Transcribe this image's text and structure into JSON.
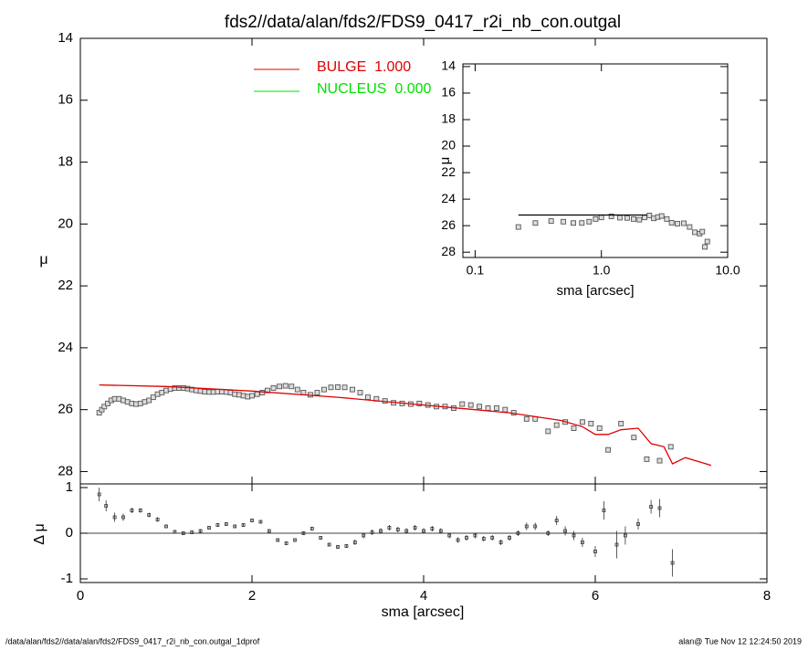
{
  "footer": {
    "left": "/data/alan/fds2//data/alan/fds2/FDS9_0417_r2i_nb_con.outgal_1dprof",
    "right": "alan@  Tue Nov 12 12:24:50 2019"
  },
  "chart_data": [
    {
      "type": "line",
      "title": "fds2//data/alan/fds2/FDS9_0417_r2i_nb_con.outgal",
      "y_label": "μ",
      "xlim": [
        0,
        8
      ],
      "ylim": [
        28.4,
        14
      ],
      "yticks": [
        14,
        16,
        18,
        20,
        22,
        24,
        26,
        28
      ],
      "series": [
        {
          "marker": "square",
          "color": "#555555",
          "x": [
            0.22,
            0.25,
            0.28,
            0.32,
            0.36,
            0.4,
            0.45,
            0.5,
            0.55,
            0.6,
            0.65,
            0.7,
            0.75,
            0.8,
            0.85,
            0.9,
            0.95,
            1.0,
            1.05,
            1.1,
            1.15,
            1.2,
            1.25,
            1.3,
            1.35,
            1.4,
            1.45,
            1.5,
            1.55,
            1.6,
            1.65,
            1.7,
            1.75,
            1.8,
            1.85,
            1.9,
            1.95,
            2.0,
            2.06,
            2.12,
            2.18,
            2.25,
            2.32,
            2.39,
            2.46,
            2.53,
            2.6,
            2.68,
            2.76,
            2.84,
            2.92,
            3.0,
            3.08,
            3.17,
            3.26,
            3.35,
            3.45,
            3.55,
            3.65,
            3.75,
            3.85,
            3.95,
            4.05,
            4.15,
            4.25,
            4.35,
            4.45,
            4.55,
            4.65,
            4.75,
            4.85,
            4.95,
            5.05,
            5.2,
            5.3,
            5.45,
            5.55,
            5.65,
            5.75,
            5.85,
            5.95,
            6.05,
            6.15,
            6.3,
            6.45,
            6.6,
            6.75,
            6.88
          ],
          "values": [
            26.1,
            26.0,
            25.9,
            25.8,
            25.7,
            25.65,
            25.65,
            25.7,
            25.75,
            25.8,
            25.82,
            25.8,
            25.75,
            25.7,
            25.6,
            25.5,
            25.45,
            25.38,
            25.33,
            25.3,
            25.3,
            25.3,
            25.32,
            25.35,
            25.38,
            25.4,
            25.42,
            25.43,
            25.43,
            25.42,
            25.42,
            25.43,
            25.45,
            25.5,
            25.52,
            25.55,
            25.58,
            25.55,
            25.5,
            25.45,
            25.38,
            25.3,
            25.25,
            25.23,
            25.25,
            25.35,
            25.45,
            25.52,
            25.45,
            25.35,
            25.28,
            25.27,
            25.28,
            25.35,
            25.45,
            25.6,
            25.65,
            25.72,
            25.78,
            25.8,
            25.82,
            25.8,
            25.85,
            25.9,
            25.9,
            25.95,
            25.82,
            25.85,
            25.9,
            25.95,
            25.95,
            26.0,
            26.1,
            26.3,
            26.3,
            26.7,
            26.5,
            26.4,
            26.6,
            26.4,
            26.45,
            26.6,
            27.3,
            26.45,
            26.9,
            27.6,
            27.65,
            27.2
          ]
        },
        {
          "name": "BULGE  1.000",
          "color": "#e00000",
          "x": [
            0.22,
            1,
            2,
            3,
            4,
            5,
            5.6,
            5.85,
            6.0,
            6.15,
            6.3,
            6.5,
            6.65,
            6.8,
            6.9,
            7.05,
            7.35
          ],
          "values": [
            25.2,
            25.25,
            25.4,
            25.6,
            25.85,
            26.1,
            26.35,
            26.55,
            26.8,
            26.8,
            26.65,
            26.6,
            27.1,
            27.2,
            27.75,
            27.55,
            27.8
          ]
        },
        {
          "name": "NUCLEUS  0.000",
          "color": "#00e000",
          "x": [],
          "values": []
        }
      ]
    },
    {
      "type": "scatter",
      "y_label": "Δ μ",
      "x_label": "sma [arcsec]",
      "xlim": [
        0,
        8
      ],
      "xticks": [
        0,
        2,
        4,
        6,
        8
      ],
      "ylim": [
        -1.08,
        1.08
      ],
      "yticks": [
        -1,
        0,
        1
      ],
      "reference_line": 0,
      "series": [
        {
          "marker": "plus",
          "color": "#333333",
          "x": [
            0.22,
            0.3,
            0.4,
            0.5,
            0.6,
            0.7,
            0.8,
            0.9,
            1.0,
            1.1,
            1.2,
            1.3,
            1.4,
            1.5,
            1.6,
            1.7,
            1.8,
            1.9,
            2.0,
            2.1,
            2.2,
            2.3,
            2.4,
            2.5,
            2.6,
            2.7,
            2.8,
            2.9,
            3.0,
            3.1,
            3.2,
            3.3,
            3.4,
            3.5,
            3.6,
            3.7,
            3.8,
            3.9,
            4.0,
            4.1,
            4.2,
            4.3,
            4.4,
            4.5,
            4.6,
            4.7,
            4.8,
            4.9,
            5.0,
            5.1,
            5.2,
            5.3,
            5.45,
            5.55,
            5.65,
            5.75,
            5.85,
            6.0,
            6.1,
            6.25,
            6.35,
            6.5,
            6.65,
            6.75,
            6.9
          ],
          "values": [
            0.85,
            0.6,
            0.35,
            0.35,
            0.5,
            0.5,
            0.4,
            0.3,
            0.15,
            0.03,
            0.0,
            0.02,
            0.05,
            0.12,
            0.18,
            0.2,
            0.15,
            0.18,
            0.28,
            0.25,
            0.05,
            -0.15,
            -0.22,
            -0.15,
            0.0,
            0.1,
            -0.1,
            -0.25,
            -0.3,
            -0.28,
            -0.2,
            -0.05,
            0.02,
            0.05,
            0.12,
            0.08,
            0.05,
            0.12,
            0.05,
            0.1,
            0.05,
            -0.05,
            -0.15,
            -0.1,
            -0.05,
            -0.12,
            -0.1,
            -0.2,
            -0.1,
            0.0,
            0.15,
            0.15,
            0.0,
            0.28,
            0.05,
            -0.05,
            -0.2,
            -0.4,
            0.5,
            -0.25,
            -0.05,
            0.2,
            0.58,
            0.55,
            -0.65
          ],
          "errors": [
            0.15,
            0.12,
            0.1,
            0.08,
            0.06,
            0.05,
            0.05,
            0.05,
            0.04,
            0.04,
            0.04,
            0.04,
            0.04,
            0.04,
            0.04,
            0.04,
            0.04,
            0.04,
            0.04,
            0.04,
            0.04,
            0.04,
            0.04,
            0.04,
            0.04,
            0.04,
            0.04,
            0.04,
            0.04,
            0.04,
            0.06,
            0.06,
            0.06,
            0.06,
            0.06,
            0.06,
            0.06,
            0.06,
            0.06,
            0.06,
            0.06,
            0.06,
            0.06,
            0.06,
            0.06,
            0.06,
            0.06,
            0.06,
            0.06,
            0.06,
            0.08,
            0.08,
            0.06,
            0.1,
            0.1,
            0.1,
            0.1,
            0.12,
            0.2,
            0.3,
            0.2,
            0.12,
            0.15,
            0.2,
            0.3
          ]
        }
      ]
    },
    {
      "type": "line",
      "y_label": "μ",
      "x_label": "sma [arcsec]",
      "xlog": true,
      "xlim": [
        0.08,
        10
      ],
      "xticks": [
        0.1,
        {
          "value": 1,
          "label": "1.0"
        },
        {
          "value": 10,
          "label": "10.0"
        }
      ],
      "ylim": [
        28.4,
        13.8
      ],
      "yticks": [
        14,
        16,
        18,
        20,
        22,
        24,
        26,
        28
      ],
      "series": [
        {
          "marker": "square",
          "color": "#555555",
          "x": [
            0.22,
            0.3,
            0.4,
            0.5,
            0.6,
            0.7,
            0.8,
            0.9,
            1.0,
            1.2,
            1.4,
            1.6,
            1.8,
            2.0,
            2.2,
            2.4,
            2.6,
            2.8,
            3.0,
            3.3,
            3.6,
            4.0,
            4.5,
            5.0,
            5.5,
            6.0,
            6.3,
            6.6,
            6.9
          ],
          "values": [
            26.1,
            25.8,
            25.65,
            25.7,
            25.8,
            25.8,
            25.7,
            25.5,
            25.38,
            25.3,
            25.4,
            25.42,
            25.5,
            25.55,
            25.38,
            25.23,
            25.45,
            25.35,
            25.27,
            25.5,
            25.78,
            25.85,
            25.82,
            26.1,
            26.5,
            26.6,
            26.45,
            27.6,
            27.2
          ]
        },
        {
          "color": "#000000",
          "x": [
            0.22,
            2.3
          ],
          "values": [
            25.2,
            25.2
          ]
        }
      ]
    }
  ]
}
